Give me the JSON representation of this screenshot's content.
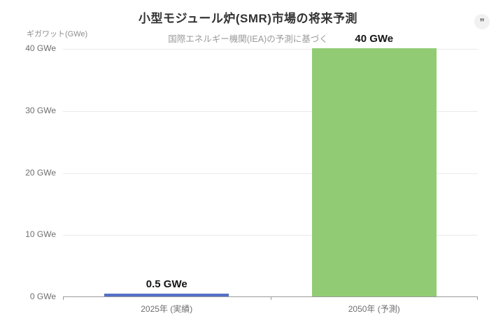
{
  "header": {
    "citation_button": {
      "icon": "quote-icon",
      "glyph": "”"
    }
  },
  "chart_data": {
    "type": "bar",
    "title": "小型モジュール炉(SMR)市場の将来予測",
    "subtitle": "国際エネルギー機関(IEA)の予測に基づく",
    "ylabel": "ギガワット(GWe)",
    "xlabel": "",
    "categories": [
      "2025年 (実績)",
      "2050年 (予測)"
    ],
    "values": [
      0.5,
      40
    ],
    "data_labels": [
      "0.5 GWe",
      "40 GWe"
    ],
    "bar_colors": [
      "#5470c6",
      "#91cc75"
    ],
    "ylim": [
      0,
      40
    ],
    "y_ticks": [
      {
        "value": 0,
        "label": "0 GWe"
      },
      {
        "value": 10,
        "label": "10 GWe"
      },
      {
        "value": 20,
        "label": "20 GWe"
      },
      {
        "value": 30,
        "label": "30 GWe"
      },
      {
        "value": 40,
        "label": "40 GWe"
      }
    ],
    "grid": true,
    "legend_position": "none"
  }
}
